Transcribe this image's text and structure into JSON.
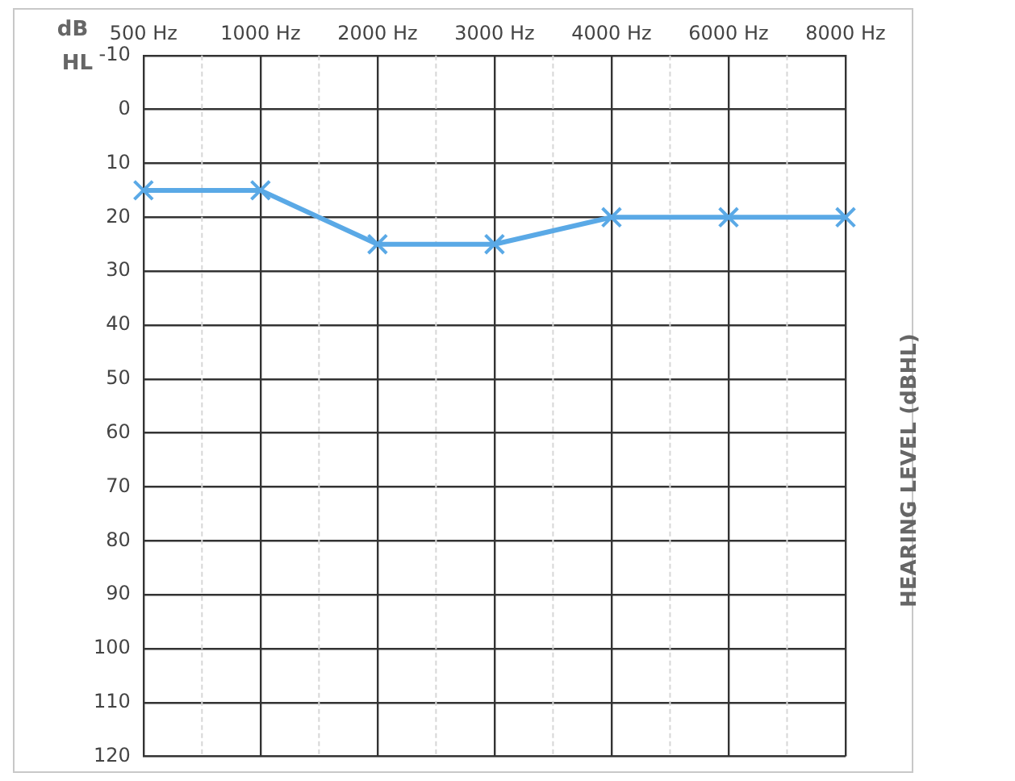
{
  "chart_data": {
    "type": "line",
    "ylabel": "HEARING LEVEL (dBHL)",
    "annotations": [
      "dB HL"
    ],
    "categories": [
      "500 Hz",
      "1000 Hz",
      "2000 Hz",
      "3000 Hz",
      "4000 Hz",
      "6000 Hz",
      "8000 Hz"
    ],
    "series": [
      {
        "color": "#5aa9e6",
        "values": [
          15,
          15,
          25,
          25,
          20,
          20,
          20
        ]
      }
    ],
    "ylim": [
      120,
      -10
    ],
    "yticks": [
      -10,
      0,
      10,
      20,
      30,
      40,
      50,
      60,
      70,
      80,
      90,
      100,
      110,
      120
    ],
    "grid": true,
    "legend": false,
    "marker": "cross",
    "line_style": "solid"
  }
}
